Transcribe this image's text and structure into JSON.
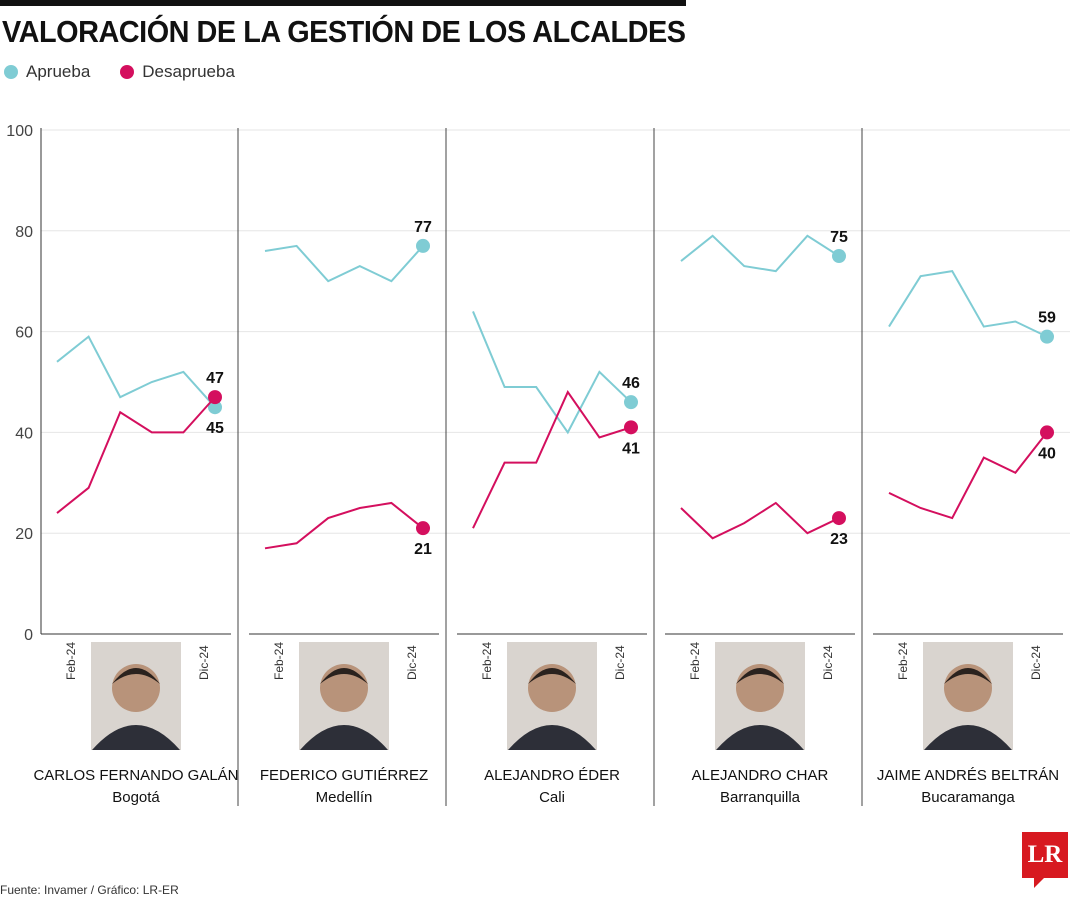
{
  "title": "VALORACIÓN DE LA GESTIÓN DE LOS ALCALDES",
  "footer": "Fuente: Invamer / Gráfico: LR-ER",
  "logo_text": "LR",
  "chart_data": {
    "type": "line",
    "ylim": [
      0,
      100
    ],
    "yticks": [
      "0",
      "20",
      "40",
      "60",
      "80",
      "100"
    ],
    "grid": true,
    "legend": [
      {
        "name": "Aprueba",
        "color": "#7fccd4"
      },
      {
        "name": "Desaprueba",
        "color": "#d40f5e"
      }
    ],
    "x_tick_labels": [
      "Feb-24",
      "Dic-24"
    ],
    "panels": [
      {
        "name": "CARLOS FERNANDO GALÁN",
        "city": "Bogotá",
        "series": [
          {
            "name": "Aprueba",
            "values": [
              54,
              59,
              47,
              50,
              52,
              45
            ]
          },
          {
            "name": "Desaprueba",
            "values": [
              24,
              29,
              44,
              40,
              40,
              47
            ]
          }
        ]
      },
      {
        "name": "FEDERICO GUTIÉRREZ",
        "city": "Medellín",
        "series": [
          {
            "name": "Aprueba",
            "values": [
              76,
              77,
              70,
              73,
              70,
              77
            ]
          },
          {
            "name": "Desaprueba",
            "values": [
              17,
              18,
              23,
              25,
              26,
              21
            ]
          }
        ]
      },
      {
        "name": "ALEJANDRO ÉDER",
        "city": "Cali",
        "series": [
          {
            "name": "Aprueba",
            "values": [
              64,
              49,
              49,
              40,
              52,
              46
            ]
          },
          {
            "name": "Desaprueba",
            "values": [
              21,
              34,
              34,
              48,
              39,
              41
            ]
          }
        ]
      },
      {
        "name": "ALEJANDRO CHAR",
        "city": "Barranquilla",
        "series": [
          {
            "name": "Aprueba",
            "values": [
              74,
              79,
              73,
              72,
              79,
              75
            ]
          },
          {
            "name": "Desaprueba",
            "values": [
              25,
              19,
              22,
              26,
              20,
              23
            ]
          }
        ]
      },
      {
        "name": "JAIME ANDRÉS BELTRÁN",
        "city": "Bucaramanga",
        "series": [
          {
            "name": "Aprueba",
            "values": [
              61,
              71,
              72,
              61,
              62,
              59
            ]
          },
          {
            "name": "Desaprueba",
            "values": [
              28,
              25,
              23,
              35,
              32,
              40
            ]
          }
        ]
      }
    ]
  }
}
